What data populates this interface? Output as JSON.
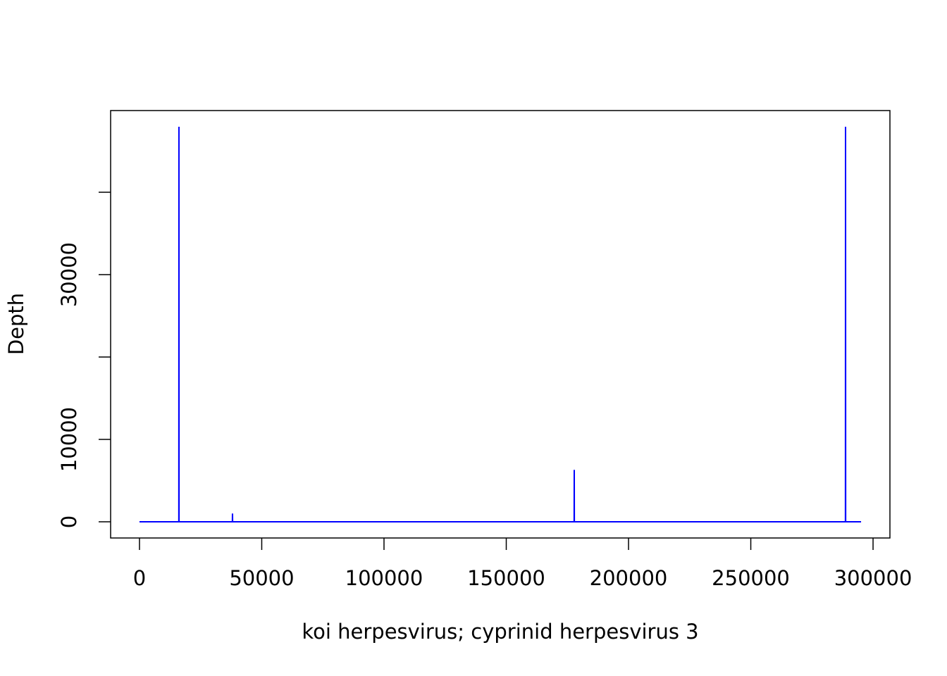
{
  "chart_data": {
    "type": "line",
    "x_label": "koi herpesvirus; cyprinid herpesvirus 3",
    "y_label": "Depth",
    "x": [
      0,
      16100,
      16140,
      16180,
      38000,
      38040,
      38080,
      177760,
      177800,
      177840,
      288710,
      288750,
      288790,
      295100
    ],
    "series": [
      {
        "color": "#0000ff",
        "values": [
          0,
          0,
          47950,
          0,
          0,
          1000,
          0,
          0,
          6300,
          0,
          0,
          47950,
          0,
          0
        ]
      }
    ],
    "xlim": [
      -11800,
      306900
    ],
    "xticks": [
      0,
      50000,
      100000,
      150000,
      200000,
      250000,
      300000
    ],
    "ylim": [
      -1966,
      49915
    ],
    "yticks": [
      0,
      10000,
      {
        "value": 20000,
        "label": null
      },
      30000,
      {
        "value": 40000,
        "label": null
      }
    ]
  }
}
